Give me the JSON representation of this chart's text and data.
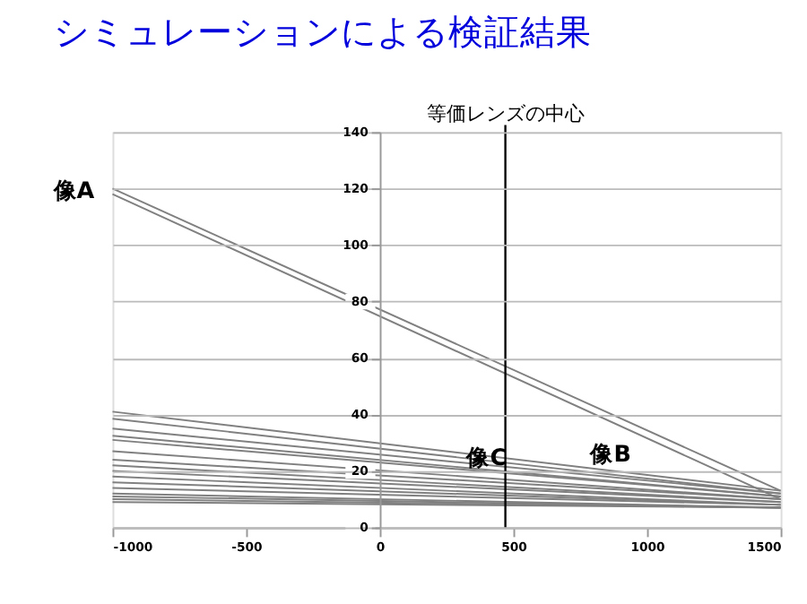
{
  "chart_data": {
    "type": "line",
    "title": "シミュレーションによる検証結果",
    "x": [
      -1000,
      1500
    ],
    "series": [
      {
        "color": "#808080",
        "values": [
          120,
          13
        ]
      },
      {
        "color": "#808080",
        "values": [
          118,
          10
        ]
      },
      {
        "color": "#808080",
        "values": [
          41,
          13
        ]
      },
      {
        "color": "#808080",
        "values": [
          38.5,
          12
        ]
      },
      {
        "color": "#808080",
        "values": [
          35,
          12
        ]
      },
      {
        "color": "#808080",
        "values": [
          32.5,
          11
        ]
      },
      {
        "color": "#808080",
        "values": [
          31,
          11
        ]
      },
      {
        "color": "#808080",
        "values": [
          27,
          10
        ]
      },
      {
        "color": "#808080",
        "values": [
          24,
          10
        ]
      },
      {
        "color": "#808080",
        "values": [
          22,
          9
        ]
      },
      {
        "color": "#808080",
        "values": [
          20,
          9
        ]
      },
      {
        "color": "#808080",
        "values": [
          18,
          8
        ]
      },
      {
        "color": "#808080",
        "values": [
          16,
          8
        ]
      },
      {
        "color": "#808080",
        "values": [
          14,
          8
        ]
      },
      {
        "color": "#808080",
        "values": [
          12,
          7
        ]
      },
      {
        "color": "#808080",
        "values": [
          11,
          7
        ]
      },
      {
        "color": "#808080",
        "values": [
          10,
          7
        ]
      },
      {
        "color": "#808080",
        "values": [
          9,
          7
        ]
      }
    ],
    "xlim": [
      -1000,
      1500
    ],
    "ylim": [
      0,
      140
    ],
    "xticks": [
      -1000,
      -500,
      0,
      500,
      1000,
      1500
    ],
    "yticks": [
      0,
      20,
      40,
      60,
      80,
      100,
      120,
      140
    ],
    "grid": "y",
    "marker": "none",
    "line_style": "solid",
    "ref_lines": [
      {
        "axis": "x",
        "value": 470,
        "label": "等価レンズの中心",
        "color": "#000000"
      }
    ],
    "annotations": [
      {
        "text": "像A",
        "x": -1000,
        "y": 119
      },
      {
        "text": "像B",
        "x": 930,
        "y": 12
      },
      {
        "text": "像C",
        "x": 400,
        "y": 7
      }
    ]
  }
}
